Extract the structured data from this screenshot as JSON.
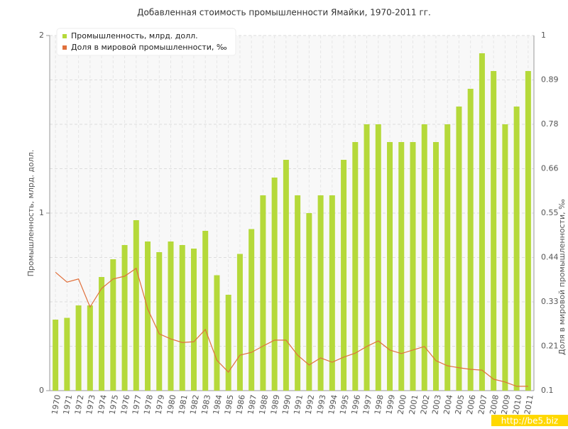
{
  "chart_data": {
    "type": "bar",
    "title": "Добавленная стоимость промышленности Ямайки, 1970-2011 гг.",
    "y_label": "Промышленность, млрд. долл.",
    "y2_label": "Доля в мировой промышленности, ‰",
    "watermark": "http://be5.biz",
    "categories": [
      "1970",
      "1971",
      "1972",
      "1973",
      "1974",
      "1975",
      "1976",
      "1977",
      "1978",
      "1979",
      "1980",
      "1981",
      "1982",
      "1983",
      "1984",
      "1985",
      "1986",
      "1987",
      "1988",
      "1989",
      "1990",
      "1991",
      "1992",
      "1993",
      "1994",
      "1995",
      "1996",
      "1997",
      "1998",
      "1999",
      "2000",
      "2001",
      "2002",
      "2003",
      "2004",
      "2005",
      "2006",
      "2007",
      "2008",
      "2009",
      "2010",
      "2011"
    ],
    "series": [
      {
        "name": "Промышленность, млрд. долл.",
        "type": "bar",
        "color": "#b5d93a",
        "values": [
          0.4,
          0.41,
          0.48,
          0.48,
          0.64,
          0.74,
          0.82,
          0.96,
          0.84,
          0.78,
          0.84,
          0.82,
          0.8,
          0.9,
          0.65,
          0.54,
          0.77,
          0.91,
          1.1,
          1.2,
          1.3,
          1.1,
          1.0,
          1.1,
          1.1,
          1.3,
          1.4,
          1.5,
          1.5,
          1.4,
          1.4,
          1.4,
          1.5,
          1.4,
          1.5,
          1.6,
          1.7,
          1.9,
          1.8,
          1.5,
          1.6,
          1.8
        ]
      },
      {
        "name": "Доля в мировой промышленности, ‰",
        "type": "line",
        "color": "#e0703c",
        "axis": "y2",
        "values": [
          0.4,
          0.375,
          0.383,
          0.312,
          0.359,
          0.383,
          0.39,
          0.41,
          0.307,
          0.244,
          0.231,
          0.222,
          0.224,
          0.255,
          0.177,
          0.147,
          0.19,
          0.197,
          0.213,
          0.228,
          0.228,
          0.19,
          0.165,
          0.183,
          0.172,
          0.185,
          0.195,
          0.212,
          0.226,
          0.203,
          0.194,
          0.203,
          0.212,
          0.176,
          0.163,
          0.158,
          0.154,
          0.152,
          0.129,
          0.122,
          0.111,
          0.111
        ]
      }
    ],
    "ylim": [
      0,
      2
    ],
    "yticks": [
      0,
      1,
      2
    ],
    "y2lim": [
      0.1,
      1
    ],
    "y2ticks": [
      0.1,
      {
        "value": 0.2125,
        "label": "0.21"
      },
      {
        "value": 0.325,
        "label": "0.33"
      },
      {
        "value": 0.4375,
        "label": "0.44"
      },
      0.55,
      {
        "value": 0.6625,
        "label": "0.66"
      },
      {
        "value": 0.775,
        "label": "0.78"
      },
      {
        "value": 0.8875,
        "label": "0.89"
      },
      1
    ],
    "grid": true,
    "legend": "top-left"
  }
}
